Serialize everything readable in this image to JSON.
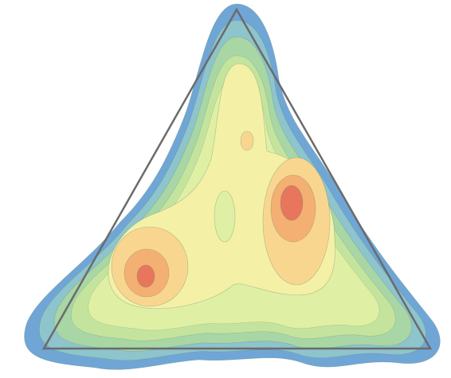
{
  "chart_data": {
    "type": "ternary-density",
    "colors": [
      "#6fa6d6",
      "#8ec4cc",
      "#a8d6a4",
      "#c4e49e",
      "#dff0a4",
      "#f4f1a6",
      "#f9d690",
      "#f4b072",
      "#e8765c"
    ]
  }
}
